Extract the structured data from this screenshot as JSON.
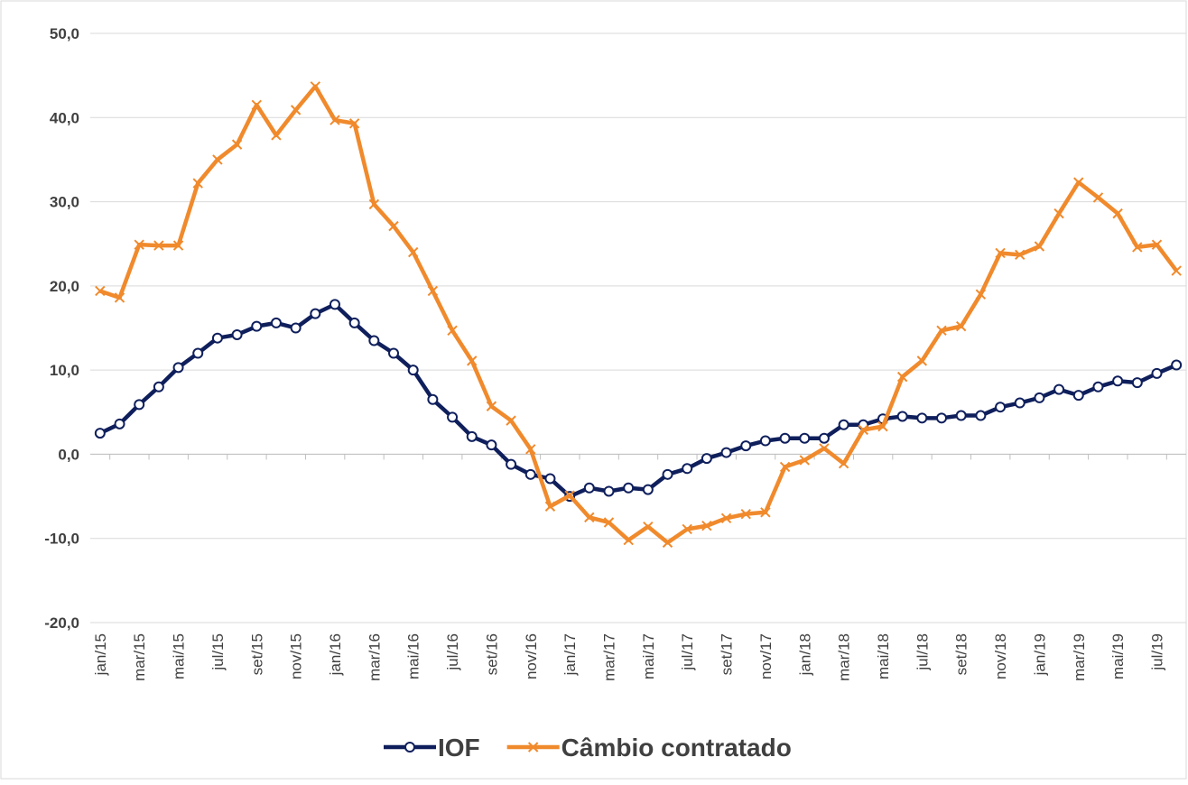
{
  "chart_data": {
    "type": "line",
    "categories": [
      "jan/15",
      null,
      "mar/15",
      null,
      "mai/15",
      null,
      "jul/15",
      null,
      "set/15",
      null,
      "nov/15",
      null,
      "jan/16",
      null,
      "mar/16",
      null,
      "mai/16",
      null,
      "jul/16",
      null,
      "set/16",
      null,
      "nov/16",
      null,
      "jan/17",
      null,
      "mar/17",
      null,
      "mai/17",
      null,
      "jul/17",
      null,
      "set/17",
      null,
      "nov/17",
      null,
      "jan/18",
      null,
      "mar/18",
      null,
      "mai/18",
      null,
      "jul/18",
      null,
      "set/18",
      null,
      "nov/18",
      null,
      "jan/19",
      null,
      "mar/19",
      null,
      "mai/19",
      null,
      "jul/19",
      null
    ],
    "series": [
      {
        "name": "IOF",
        "color": "#0f1f5c",
        "marker": "circle",
        "values": [
          2.5,
          3.6,
          5.9,
          8.0,
          10.3,
          12.0,
          13.8,
          14.2,
          15.2,
          15.6,
          15.0,
          16.7,
          17.8,
          15.6,
          13.5,
          12.0,
          10.0,
          6.5,
          4.4,
          2.1,
          1.1,
          -1.2,
          -2.4,
          -2.9,
          -5.0,
          -4.0,
          -4.4,
          -4.0,
          -4.2,
          -2.4,
          -1.7,
          -0.5,
          0.2,
          1.0,
          1.6,
          1.9,
          1.9,
          1.9,
          3.5,
          3.5,
          4.2,
          4.5,
          4.3,
          4.3,
          4.6,
          4.6,
          5.6,
          6.1,
          6.7,
          7.7,
          7.0,
          8.0,
          8.7,
          8.5,
          9.6,
          10.6
        ]
      },
      {
        "name": "Câmbio contratado",
        "color": "#f08a2c",
        "marker": "x",
        "values": [
          19.4,
          18.6,
          24.9,
          24.8,
          24.8,
          32.2,
          35.0,
          36.8,
          41.5,
          37.9,
          40.9,
          43.7,
          39.7,
          39.3,
          29.7,
          27.1,
          24.0,
          19.4,
          14.7,
          11.1,
          5.7,
          4.0,
          0.6,
          -6.2,
          -4.9,
          -7.5,
          -8.1,
          -10.2,
          -8.6,
          -10.5,
          -8.9,
          -8.5,
          -7.6,
          -7.1,
          -6.9,
          -1.5,
          -0.7,
          0.7,
          -1.1,
          2.9,
          3.3,
          9.2,
          11.1,
          14.7,
          15.2,
          19.0,
          23.9,
          23.7,
          24.7,
          28.6,
          32.3,
          30.5,
          28.6,
          24.6,
          24.9,
          21.8
        ]
      }
    ],
    "ylim": [
      -20,
      50
    ],
    "yticks": [
      {
        "value": -20,
        "label": "-20,0"
      },
      {
        "value": -10,
        "label": "-10,0"
      },
      {
        "value": 0,
        "label": "0,0"
      },
      {
        "value": 10,
        "label": "10,0"
      },
      {
        "value": 20,
        "label": "20,0"
      },
      {
        "value": 30,
        "label": "30,0"
      },
      {
        "value": 40,
        "label": "40,0"
      },
      {
        "value": 50,
        "label": "50,0"
      }
    ],
    "grid": true,
    "legend": "bottom"
  }
}
